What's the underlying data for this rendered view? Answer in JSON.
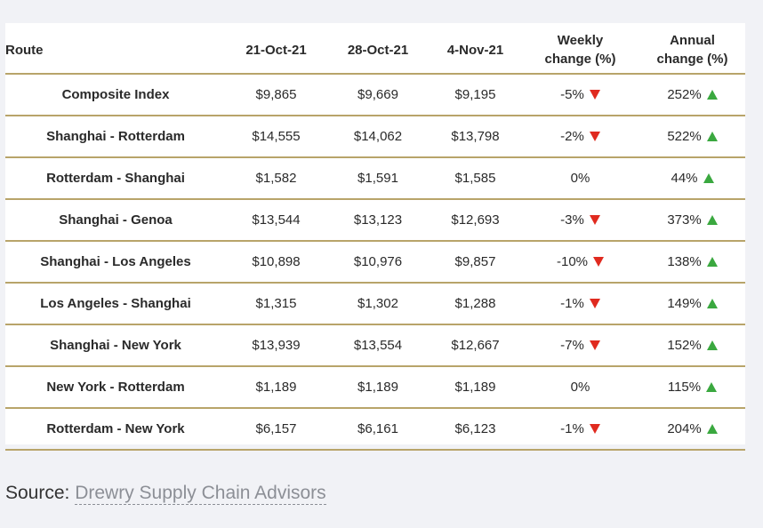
{
  "colors": {
    "rule": "#b8a46a",
    "up": "#3aa83f",
    "down": "#e02a1f",
    "background": "#f1f2f6"
  },
  "chart_data": {
    "type": "table",
    "columns": [
      {
        "key": "route",
        "lines": [
          "Route"
        ]
      },
      {
        "key": "d1",
        "lines": [
          "21-Oct-21"
        ]
      },
      {
        "key": "d2",
        "lines": [
          "28-Oct-21"
        ]
      },
      {
        "key": "d3",
        "lines": [
          "4-Nov-21"
        ]
      },
      {
        "key": "weekly",
        "lines": [
          "Weekly",
          "change (%)"
        ]
      },
      {
        "key": "annual",
        "lines": [
          "Annual",
          "change (%)"
        ]
      }
    ],
    "rows": [
      {
        "route": "Composite Index",
        "d1": "$9,865",
        "d2": "$9,669",
        "d3": "$9,195",
        "weekly": "-5%",
        "weekly_dir": "down-arrow-icon",
        "annual": "252%",
        "annual_dir": "up-arrow-icon"
      },
      {
        "route": "Shanghai - Rotterdam",
        "d1": "$14,555",
        "d2": "$14,062",
        "d3": "$13,798",
        "weekly": "-2%",
        "weekly_dir": "down-arrow-icon",
        "annual": "522%",
        "annual_dir": "up-arrow-icon"
      },
      {
        "route": "Rotterdam - Shanghai",
        "d1": "$1,582",
        "d2": "$1,591",
        "d3": "$1,585",
        "weekly": "0%",
        "weekly_dir": "none",
        "annual": "44%",
        "annual_dir": "up-arrow-icon"
      },
      {
        "route": "Shanghai - Genoa",
        "d1": "$13,544",
        "d2": "$13,123",
        "d3": "$12,693",
        "weekly": "-3%",
        "weekly_dir": "down-arrow-icon",
        "annual": "373%",
        "annual_dir": "up-arrow-icon"
      },
      {
        "route": "Shanghai - Los Angeles",
        "d1": "$10,898",
        "d2": "$10,976",
        "d3": "$9,857",
        "weekly": "-10%",
        "weekly_dir": "down-arrow-icon",
        "annual": "138%",
        "annual_dir": "up-arrow-icon"
      },
      {
        "route": "Los Angeles - Shanghai",
        "d1": "$1,315",
        "d2": "$1,302",
        "d3": "$1,288",
        "weekly": "-1%",
        "weekly_dir": "down-arrow-icon",
        "annual": "149%",
        "annual_dir": "up-arrow-icon"
      },
      {
        "route": "Shanghai - New York",
        "d1": "$13,939",
        "d2": "$13,554",
        "d3": "$12,667",
        "weekly": "-7%",
        "weekly_dir": "down-arrow-icon",
        "annual": "152%",
        "annual_dir": "up-arrow-icon"
      },
      {
        "route": "New York - Rotterdam",
        "d1": "$1,189",
        "d2": "$1,189",
        "d3": "$1,189",
        "weekly": "0%",
        "weekly_dir": "none",
        "annual": "115%",
        "annual_dir": "up-arrow-icon"
      },
      {
        "route": "Rotterdam - New York",
        "d1": "$6,157",
        "d2": "$6,161",
        "d3": "$6,123",
        "weekly": "-1%",
        "weekly_dir": "down-arrow-icon",
        "annual": "204%",
        "annual_dir": "up-arrow-icon"
      }
    ]
  },
  "source": {
    "label": "Source:",
    "link_text": "Drewry Supply Chain Advisors"
  }
}
